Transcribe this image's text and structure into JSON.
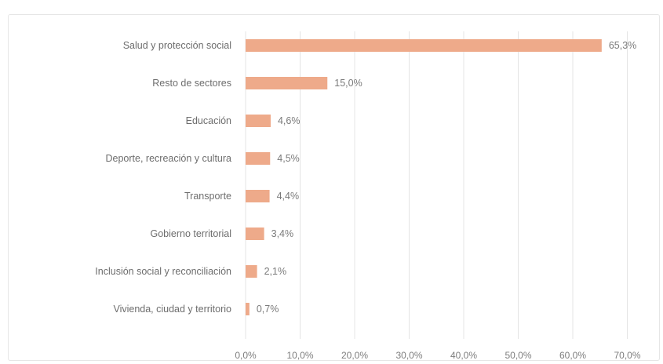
{
  "chart_data": {
    "type": "bar",
    "orientation": "horizontal",
    "title": "",
    "categories": [
      "Salud y protección social",
      "Resto de sectores",
      "Educación",
      "Deporte, recreación y cultura",
      "Transporte",
      "Gobierno territorial",
      "Inclusión social y reconciliación",
      "Vivienda, ciudad y territorio"
    ],
    "values": [
      65.3,
      15.0,
      4.6,
      4.5,
      4.4,
      3.4,
      2.1,
      0.7
    ],
    "value_labels": [
      "65,3%",
      "15,0%",
      "4,6%",
      "4,5%",
      "4,4%",
      "3,4%",
      "2,1%",
      "0,7%"
    ],
    "xlim": [
      0,
      70
    ],
    "xticks": [
      "0,0%",
      "10,0%",
      "20,0%",
      "30,0%",
      "40,0%",
      "50,0%",
      "60,0%",
      "70,0%"
    ],
    "xlabel": "",
    "ylabel": "",
    "grid": true,
    "legend": "none",
    "bar_color": "#eeaa8a",
    "grid_color": "#e4e4e4"
  }
}
